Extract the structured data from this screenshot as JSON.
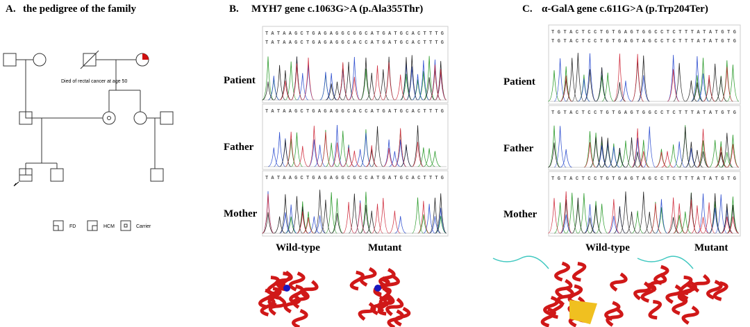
{
  "panels": [
    {
      "label": "A.",
      "title": "the pedigree of the family",
      "annotation": "Died of rectal cancer at age 50",
      "legend": [
        "FD",
        "HCM",
        "Carrier"
      ]
    },
    {
      "label": "B.",
      "title": "MYH7 gene c.1063G>A (p.Ala355Thr)",
      "rows": [
        "Patient",
        "Father",
        "Mother"
      ],
      "sequences": [
        "TATAAGCTGAGAGGCGGCATGATGCACTTTG",
        "TATAAGCTGAGAGGCACCATGATGCACTTTG",
        "TATAAGCTGAGAGGCACCATGATGCACTTTG",
        "TATAAGCTGAGAGGCGCCATGATGCACTTTG"
      ],
      "structures": [
        "Wild-type",
        "Mutant"
      ]
    },
    {
      "label": "C.",
      "title": "α-GalA gene c.611G>A (p.Trp204Ter)",
      "rows": [
        "Patient",
        "Father",
        "Mother"
      ],
      "sequences": [
        "TGTACTCCTGTGAGTGGCCTCTTTATATGTG",
        "TGTACTCCTGTGAGTAGCCTCTTTATATGTG",
        "TGTACTCCTGTGAGTGGCCTCTTTATATGTG",
        "TGTACTCCTGTGAGTAGCCTCTTTATATGTG"
      ],
      "structures": [
        "Wild-type",
        "Mutant"
      ]
    }
  ]
}
